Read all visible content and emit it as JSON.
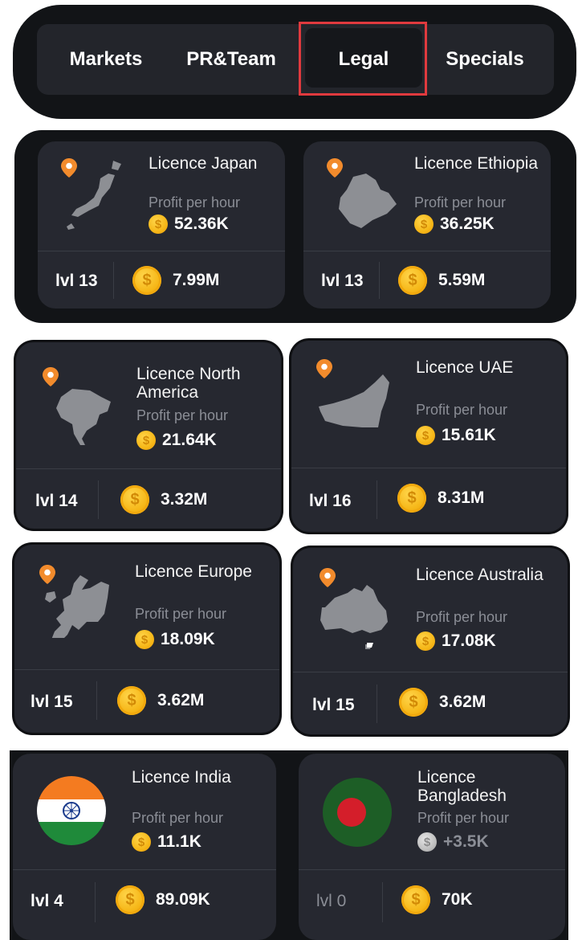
{
  "tabs": [
    "Markets",
    "PR&Team",
    "Legal",
    "Specials"
  ],
  "active_tab": "Legal",
  "profit_label": "Profit per hour",
  "cards": [
    {
      "title": "Licence Japan",
      "profit": "52.36K",
      "level": "lvl 13",
      "cost": "7.99M",
      "icon": "japan-map-icon"
    },
    {
      "title": "Licence Ethiopia",
      "profit": "36.25K",
      "level": "lvl 13",
      "cost": "5.59M",
      "icon": "ethiopia-map-icon"
    },
    {
      "title": "Licence North America",
      "profit": "21.64K",
      "level": "lvl 14",
      "cost": "3.32M",
      "icon": "north-america-map-icon"
    },
    {
      "title": "Licence UAE",
      "profit": "15.61K",
      "level": "lvl 16",
      "cost": "8.31M",
      "icon": "uae-map-icon"
    },
    {
      "title": "Licence Europe",
      "profit": "18.09K",
      "level": "lvl 15",
      "cost": "3.62M",
      "icon": "europe-map-icon"
    },
    {
      "title": "Licence Australia",
      "profit": "17.08K",
      "level": "lvl 15",
      "cost": "3.62M",
      "icon": "australia-map-icon"
    },
    {
      "title": "Licence India",
      "profit": "11.1K",
      "level": "lvl 4",
      "cost": "89.09K",
      "icon": "india-flag-icon"
    },
    {
      "title": "Licence Bangladesh",
      "profit": "+3.5K",
      "level": "lvl 0",
      "cost": "70K",
      "icon": "bangladesh-flag-icon"
    }
  ],
  "coin_symbol": "$",
  "colors": {
    "accent_highlight": "#e03a3e",
    "card_bg": "#262830",
    "coin_gold": "#f6b718",
    "pin_orange": "#f28b2c"
  }
}
